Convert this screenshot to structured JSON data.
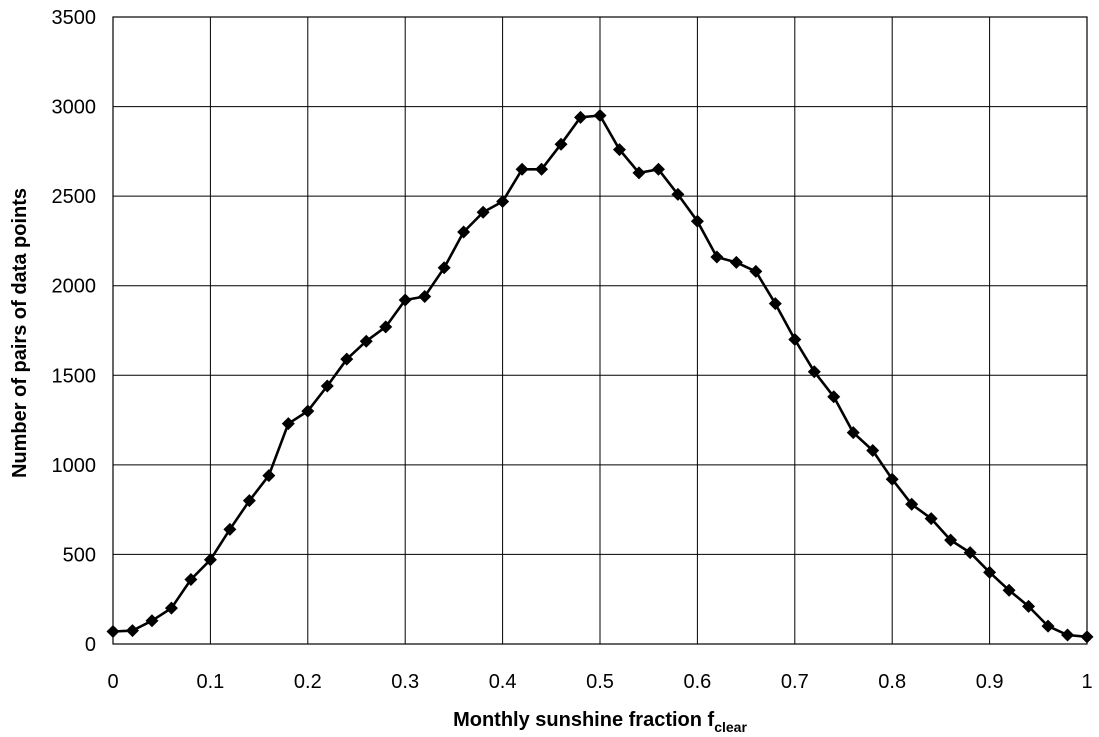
{
  "chart_data": {
    "type": "line",
    "title": "",
    "xlabel": "Monthly sunshine fraction",
    "xlabel_sub": "clear",
    "xlabel_f": "f",
    "ylabel": "Number of pairs of data points",
    "xlim": [
      0,
      1
    ],
    "ylim": [
      0,
      3500
    ],
    "grid": true,
    "legend": "none",
    "x_ticks": [
      "0",
      "0.1",
      "0.2",
      "0.3",
      "0.4",
      "0.5",
      "0.6",
      "0.7",
      "0.8",
      "0.9",
      "1"
    ],
    "y_ticks": [
      "0",
      "500",
      "1000",
      "1500",
      "2000",
      "2500",
      "3000",
      "3500"
    ],
    "series": [
      {
        "marker": "diamond",
        "color": "#000000",
        "x": [
          0.0,
          0.02,
          0.04,
          0.06,
          0.08,
          0.1,
          0.12,
          0.14,
          0.16,
          0.18,
          0.2,
          0.22,
          0.24,
          0.26,
          0.28,
          0.3,
          0.32,
          0.34,
          0.36,
          0.38,
          0.4,
          0.42,
          0.44,
          0.46,
          0.48,
          0.5,
          0.52,
          0.54,
          0.56,
          0.58,
          0.6,
          0.62,
          0.64,
          0.66,
          0.68,
          0.7,
          0.72,
          0.74,
          0.76,
          0.78,
          0.8,
          0.82,
          0.84,
          0.86,
          0.88,
          0.9,
          0.92,
          0.94,
          0.96,
          0.98,
          1.0
        ],
        "y": [
          70,
          75,
          130,
          200,
          360,
          470,
          640,
          800,
          940,
          1230,
          1300,
          1440,
          1590,
          1690,
          1770,
          1920,
          1940,
          2100,
          2300,
          2410,
          2470,
          2650,
          2650,
          2790,
          2940,
          2950,
          2760,
          2630,
          2650,
          2510,
          2360,
          2160,
          2130,
          2080,
          1900,
          1700,
          1520,
          1380,
          1180,
          1080,
          920,
          780,
          700,
          580,
          510,
          400,
          300,
          210,
          100,
          50,
          40
        ]
      }
    ]
  }
}
